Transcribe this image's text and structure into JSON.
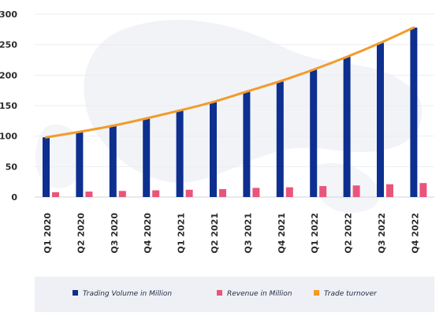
{
  "chart_data": {
    "type": "bar",
    "categories": [
      "Q1 2020",
      "Q2 2020",
      "Q3 2020",
      "Q4 2020",
      "Q1 2021",
      "Q2 2021",
      "Q3 2021",
      "Q4 2021",
      "Q1 2022",
      "Q2 2022",
      "Q3 2022",
      "Q4 2022"
    ],
    "series": [
      {
        "name": "Trading Volume in Million",
        "type": "bar",
        "color": "#0d2f8f",
        "values": [
          98,
          107,
          117,
          129,
          142,
          156,
          173,
          190,
          209,
          230,
          253,
          278
        ]
      },
      {
        "name": "Revenue in Million",
        "type": "bar",
        "color": "#e9557a",
        "values": [
          8,
          9,
          10,
          11,
          12,
          13,
          15,
          16,
          18,
          19,
          21,
          23
        ]
      },
      {
        "name": "Trade turnover",
        "type": "line",
        "color": "#f39b2a",
        "values": [
          98,
          107,
          117,
          129,
          142,
          156,
          173,
          190,
          209,
          230,
          253,
          278
        ]
      }
    ],
    "ylim": [
      0,
      300
    ],
    "yticks": [
      0,
      50,
      100,
      150,
      200,
      250,
      300
    ],
    "grid": true,
    "legend_position": "bottom",
    "title": "",
    "xlabel": "",
    "ylabel": ""
  },
  "legend": {
    "items": [
      {
        "label": "Trading Volume in Million",
        "color": "#0d2f8f"
      },
      {
        "label": "Revenue in Million",
        "color": "#e9557a"
      },
      {
        "label": "Trade turnover",
        "color": "#f39b2a"
      }
    ]
  }
}
